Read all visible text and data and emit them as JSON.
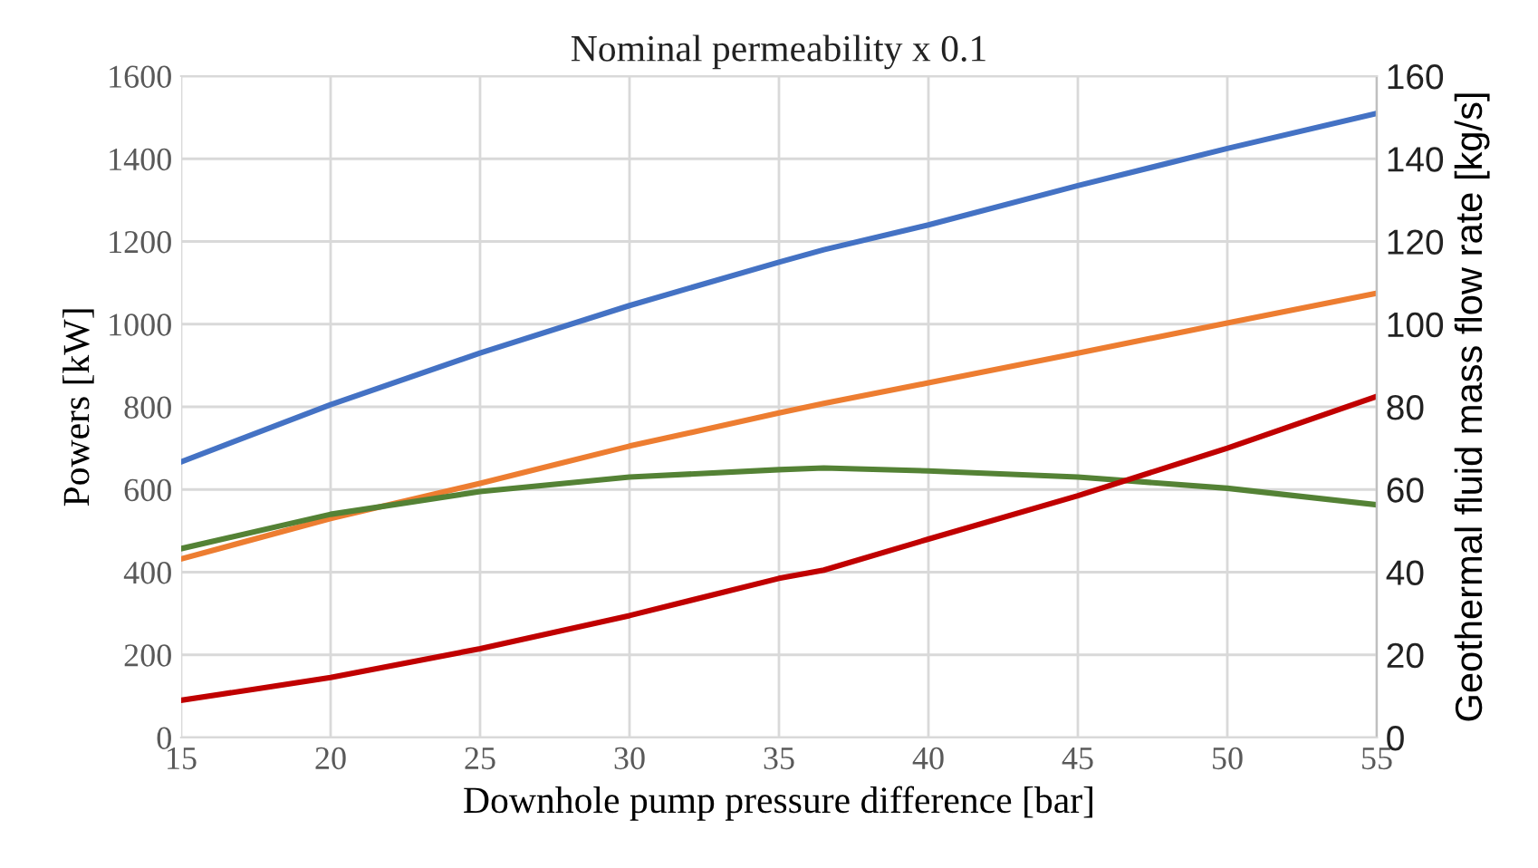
{
  "chart_data": {
    "type": "line",
    "title": "Nominal permeability x 0.1",
    "xlabel": "Downhole pump pressure difference [bar]",
    "ylabel": "Powers [kW]",
    "y2label": "Geothermal fluid mass flow rate [kg/s]",
    "x": [
      15,
      20,
      25,
      30,
      35,
      36.5,
      40,
      45,
      50,
      55
    ],
    "series": [
      {
        "color": "#4472c4",
        "values": [
          667,
          805,
          930,
          1045,
          1150,
          1180,
          1240,
          1335,
          1425,
          1510
        ]
      },
      {
        "color": "#ed7d31",
        "values": [
          432,
          530,
          615,
          705,
          785,
          808,
          858,
          930,
          1003,
          1075
        ]
      },
      {
        "color": "#548235",
        "values": [
          457,
          540,
          595,
          630,
          648,
          652,
          645,
          630,
          603,
          563
        ]
      },
      {
        "color": "#c00000",
        "values": [
          90,
          145,
          215,
          295,
          385,
          405,
          480,
          585,
          700,
          825
        ]
      }
    ],
    "xlim": [
      15,
      55
    ],
    "xticks": [
      15,
      20,
      25,
      30,
      35,
      40,
      45,
      50,
      55
    ],
    "ylim": [
      0,
      1600
    ],
    "yticks": [
      0,
      200,
      400,
      600,
      800,
      1000,
      1200,
      1400,
      1600
    ],
    "y2lim": [
      0,
      160
    ],
    "y2ticks": [
      0,
      20,
      40,
      60,
      80,
      100,
      120,
      140,
      160
    ],
    "grid": true,
    "marker": "none",
    "line_style": "solid"
  }
}
